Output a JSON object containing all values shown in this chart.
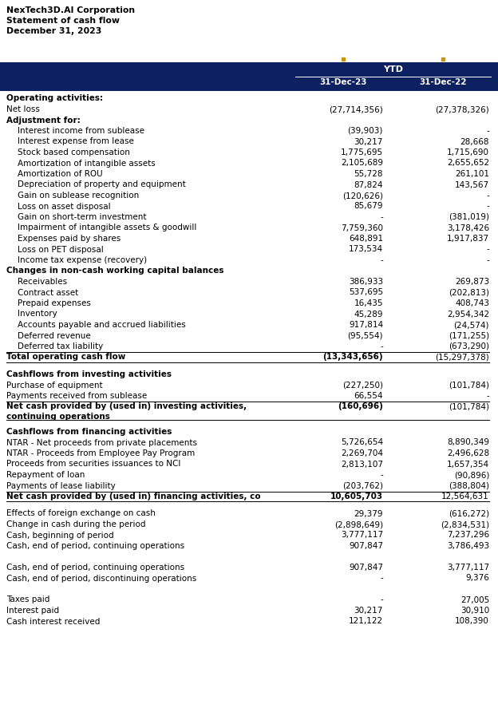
{
  "company": "NexTech3D.AI Corporation",
  "subtitle": "Statement of cash flow",
  "date": "December 31, 2023",
  "header_bg": "#0d2060",
  "header_text": "#ffffff",
  "col1_header": "YTD",
  "col2_header": "31-Dec-23",
  "col3_header": "31-Dec-22",
  "rows": [
    {
      "label": "Operating activities:",
      "val1": "",
      "val2": "",
      "indent": 0,
      "bold": true,
      "total_row": false,
      "blank_before": false,
      "multiline": false
    },
    {
      "label": "Net loss",
      "val1": "(27,714,356)",
      "val2": "(27,378,326)",
      "indent": 0,
      "bold": false,
      "total_row": false,
      "blank_before": false,
      "multiline": false
    },
    {
      "label": "Adjustment for:",
      "val1": "",
      "val2": "",
      "indent": 0,
      "bold": true,
      "total_row": false,
      "blank_before": false,
      "multiline": false
    },
    {
      "label": "Interest income from sublease",
      "val1": "(39,903)",
      "val2": "-",
      "indent": 1,
      "bold": false,
      "total_row": false,
      "blank_before": false,
      "multiline": false
    },
    {
      "label": "Interest expense from lease",
      "val1": "30,217",
      "val2": "28,668",
      "indent": 1,
      "bold": false,
      "total_row": false,
      "blank_before": false,
      "multiline": false
    },
    {
      "label": "Stock based compensation",
      "val1": "1,775,695",
      "val2": "1,715,690",
      "indent": 1,
      "bold": false,
      "total_row": false,
      "blank_before": false,
      "multiline": false
    },
    {
      "label": "Amortization of intangible assets",
      "val1": "2,105,689",
      "val2": "2,655,652",
      "indent": 1,
      "bold": false,
      "total_row": false,
      "blank_before": false,
      "multiline": false
    },
    {
      "label": "Amortization of ROU",
      "val1": "55,728",
      "val2": "261,101",
      "indent": 1,
      "bold": false,
      "total_row": false,
      "blank_before": false,
      "multiline": false
    },
    {
      "label": "Depreciation of property and equipment",
      "val1": "87,824",
      "val2": "143,567",
      "indent": 1,
      "bold": false,
      "total_row": false,
      "blank_before": false,
      "multiline": false
    },
    {
      "label": "Gain on sublease recognition",
      "val1": "(120,626)",
      "val2": "-",
      "indent": 1,
      "bold": false,
      "total_row": false,
      "blank_before": false,
      "multiline": false
    },
    {
      "label": "Loss on asset disposal",
      "val1": "85,679",
      "val2": "-",
      "indent": 1,
      "bold": false,
      "total_row": false,
      "blank_before": false,
      "multiline": false
    },
    {
      "label": "Gain on short-term investment",
      "val1": "-",
      "val2": "(381,019)",
      "indent": 1,
      "bold": false,
      "total_row": false,
      "blank_before": false,
      "multiline": false
    },
    {
      "label": "Impairment of intangible assets & goodwill",
      "val1": "7,759,360",
      "val2": "3,178,426",
      "indent": 1,
      "bold": false,
      "total_row": false,
      "blank_before": false,
      "multiline": false
    },
    {
      "label": "Expenses paid by shares",
      "val1": "648,891",
      "val2": "1,917,837",
      "indent": 1,
      "bold": false,
      "total_row": false,
      "blank_before": false,
      "multiline": false
    },
    {
      "label": "Loss on PET disposal",
      "val1": "173,534",
      "val2": "-",
      "indent": 1,
      "bold": false,
      "total_row": false,
      "blank_before": false,
      "multiline": false
    },
    {
      "label": "Income tax expense (recovery)",
      "val1": "-",
      "val2": "-",
      "indent": 1,
      "bold": false,
      "total_row": false,
      "blank_before": false,
      "multiline": false
    },
    {
      "label": "Changes in non-cash working capital balances",
      "val1": "",
      "val2": "",
      "indent": 0,
      "bold": true,
      "total_row": false,
      "blank_before": false,
      "multiline": false
    },
    {
      "label": "Receivables",
      "val1": "386,933",
      "val2": "269,873",
      "indent": 1,
      "bold": false,
      "total_row": false,
      "blank_before": false,
      "multiline": false
    },
    {
      "label": "Contract asset",
      "val1": "537,695",
      "val2": "(202,813)",
      "indent": 1,
      "bold": false,
      "total_row": false,
      "blank_before": false,
      "multiline": false
    },
    {
      "label": "Prepaid expenses",
      "val1": "16,435",
      "val2": "408,743",
      "indent": 1,
      "bold": false,
      "total_row": false,
      "blank_before": false,
      "multiline": false
    },
    {
      "label": "Inventory",
      "val1": "45,289",
      "val2": "2,954,342",
      "indent": 1,
      "bold": false,
      "total_row": false,
      "blank_before": false,
      "multiline": false
    },
    {
      "label": "Accounts payable and accrued liabilities",
      "val1": "917,814",
      "val2": "(24,574)",
      "indent": 1,
      "bold": false,
      "total_row": false,
      "blank_before": false,
      "multiline": false
    },
    {
      "label": "Deferred revenue",
      "val1": "(95,554)",
      "val2": "(171,255)",
      "indent": 1,
      "bold": false,
      "total_row": false,
      "blank_before": false,
      "multiline": false
    },
    {
      "label": "Deferred tax liability",
      "val1": "-",
      "val2": "(673,290)",
      "indent": 1,
      "bold": false,
      "total_row": false,
      "blank_before": false,
      "multiline": false
    },
    {
      "label": "Total operating cash flow",
      "val1": "(13,343,656)",
      "val2": "(15,297,378)",
      "indent": 0,
      "bold": true,
      "total_row": true,
      "blank_before": false,
      "multiline": false
    },
    {
      "label": "Cashflows from investing activities",
      "val1": "",
      "val2": "",
      "indent": 0,
      "bold": true,
      "total_row": false,
      "blank_before": true,
      "multiline": false
    },
    {
      "label": "Purchase of equipment",
      "val1": "(227,250)",
      "val2": "(101,784)",
      "indent": 0,
      "bold": false,
      "total_row": false,
      "blank_before": false,
      "multiline": false
    },
    {
      "label": "Payments received from sublease",
      "val1": "66,554",
      "val2": "-",
      "indent": 0,
      "bold": false,
      "total_row": false,
      "blank_before": false,
      "multiline": false
    },
    {
      "label": "Net cash provided by (used in) investing activities,",
      "val1": "(160,696)",
      "val2": "(101,784)",
      "indent": 0,
      "bold": true,
      "total_row": true,
      "blank_before": false,
      "multiline": true,
      "line2": "continuing operations"
    },
    {
      "label": "Cashflows from financing activities",
      "val1": "",
      "val2": "",
      "indent": 0,
      "bold": true,
      "total_row": false,
      "blank_before": true,
      "multiline": false
    },
    {
      "label": "NTAR - Net proceeds from private placements",
      "val1": "5,726,654",
      "val2": "8,890,349",
      "indent": 0,
      "bold": false,
      "total_row": false,
      "blank_before": false,
      "multiline": false
    },
    {
      "label": "NTAR - Proceeds from Employee Pay Program",
      "val1": "2,269,704",
      "val2": "2,496,628",
      "indent": 0,
      "bold": false,
      "total_row": false,
      "blank_before": false,
      "multiline": false
    },
    {
      "label": "Proceeds from securities issuances to NCI",
      "val1": "2,813,107",
      "val2": "1,657,354",
      "indent": 0,
      "bold": false,
      "total_row": false,
      "blank_before": false,
      "multiline": false
    },
    {
      "label": "Repayment of loan",
      "val1": "-",
      "val2": "(90,896)",
      "indent": 0,
      "bold": false,
      "total_row": false,
      "blank_before": false,
      "multiline": false
    },
    {
      "label": "Payments of lease liability",
      "val1": "(203,762)",
      "val2": "(388,804)",
      "indent": 0,
      "bold": false,
      "total_row": false,
      "blank_before": false,
      "multiline": false
    },
    {
      "label": "Net cash provided by (used in) financing activities, co",
      "val1": "10,605,703",
      "val2": "12,564,631",
      "indent": 0,
      "bold": true,
      "total_row": true,
      "blank_before": false,
      "multiline": false
    },
    {
      "label": "Effects of foreign exchange on cash",
      "val1": "29,379",
      "val2": "(616,272)",
      "indent": 0,
      "bold": false,
      "total_row": false,
      "blank_before": true,
      "multiline": false
    },
    {
      "label": "Change in cash during the period",
      "val1": "(2,898,649)",
      "val2": "(2,834,531)",
      "indent": 0,
      "bold": false,
      "total_row": false,
      "blank_before": false,
      "multiline": false
    },
    {
      "label": "Cash, beginning of period",
      "val1": "3,777,117",
      "val2": "7,237,296",
      "indent": 0,
      "bold": false,
      "total_row": false,
      "blank_before": false,
      "multiline": false
    },
    {
      "label": "Cash, end of period, continuing operations",
      "val1": "907,847",
      "val2": "3,786,493",
      "indent": 0,
      "bold": false,
      "total_row": false,
      "blank_before": false,
      "multiline": false
    },
    {
      "label": "",
      "val1": "",
      "val2": "",
      "indent": 0,
      "bold": false,
      "total_row": false,
      "blank_before": false,
      "multiline": false
    },
    {
      "label": "Cash, end of period, continuing operations",
      "val1": "907,847",
      "val2": "3,777,117",
      "indent": 0,
      "bold": false,
      "total_row": false,
      "blank_before": false,
      "multiline": false
    },
    {
      "label": "Cash, end of period, discontinuing operations",
      "val1": "-",
      "val2": "9,376",
      "indent": 0,
      "bold": false,
      "total_row": false,
      "blank_before": false,
      "multiline": false
    },
    {
      "label": "",
      "val1": "",
      "val2": "",
      "indent": 0,
      "bold": false,
      "total_row": false,
      "blank_before": false,
      "multiline": false
    },
    {
      "label": "Taxes paid",
      "val1": "-",
      "val2": "27,005",
      "indent": 0,
      "bold": false,
      "total_row": false,
      "blank_before": false,
      "multiline": false
    },
    {
      "label": "Interest paid",
      "val1": "30,217",
      "val2": "30,910",
      "indent": 0,
      "bold": false,
      "total_row": false,
      "blank_before": false,
      "multiline": false
    },
    {
      "label": "Cash interest received",
      "val1": "121,122",
      "val2": "108,390",
      "indent": 0,
      "bold": false,
      "total_row": false,
      "blank_before": false,
      "multiline": false
    }
  ]
}
